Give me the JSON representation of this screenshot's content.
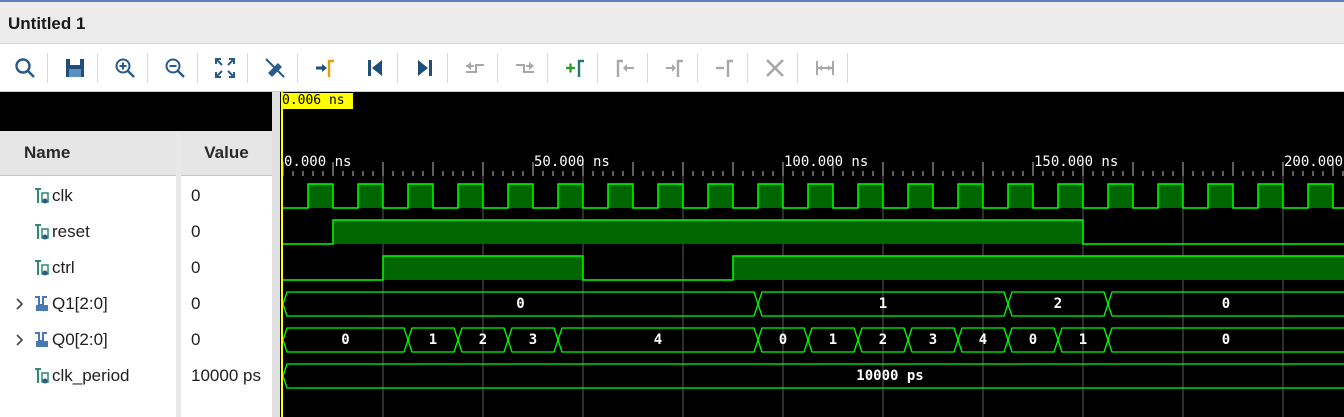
{
  "window": {
    "title": "Untitled 1"
  },
  "toolbar": {
    "buttons": [
      {
        "icon": "search-icon",
        "enabled": true
      },
      {
        "icon": "save-icon",
        "enabled": true
      },
      {
        "icon": "zoom-in-icon",
        "enabled": true
      },
      {
        "icon": "zoom-out-icon",
        "enabled": true
      },
      {
        "icon": "zoom-fit-icon",
        "enabled": true
      },
      {
        "icon": "snap-to-transition-icon",
        "enabled": true
      },
      {
        "icon": "go-to-cursor-icon",
        "enabled": true
      },
      {
        "icon": "go-to-time-zero-icon",
        "enabled": true
      },
      {
        "icon": "go-to-last-time-icon",
        "enabled": true
      },
      {
        "icon": "previous-transition-icon",
        "enabled": false
      },
      {
        "icon": "next-transition-icon",
        "enabled": false
      },
      {
        "icon": "add-marker-icon",
        "enabled": true
      },
      {
        "icon": "previous-marker-icon",
        "enabled": false
      },
      {
        "icon": "next-marker-icon",
        "enabled": false
      },
      {
        "icon": "swap-cursors-icon",
        "enabled": false
      },
      {
        "icon": "delete-marker-icon",
        "enabled": false
      },
      {
        "icon": "floating-ruler-icon",
        "enabled": false
      }
    ]
  },
  "columns": {
    "name": "Name",
    "value": "Value"
  },
  "signals": [
    {
      "name": "clk",
      "value": "0",
      "kind": "bit",
      "expandable": false
    },
    {
      "name": "reset",
      "value": "0",
      "kind": "bit",
      "expandable": false
    },
    {
      "name": "ctrl",
      "value": "0",
      "kind": "bit",
      "expandable": false
    },
    {
      "name": "Q1[2:0]",
      "value": "0",
      "kind": "bus",
      "expandable": true
    },
    {
      "name": "Q0[2:0]",
      "value": "0",
      "kind": "bus",
      "expandable": true
    },
    {
      "name": "clk_period",
      "value": "10000 ps",
      "kind": "bit",
      "expandable": false
    }
  ],
  "timeline": {
    "cursor_label": "0.006 ns",
    "tick_labels": [
      {
        "t": 0,
        "text": "0.000 ns"
      },
      {
        "t": 50,
        "text": "50.000 ns"
      },
      {
        "t": 100,
        "text": "100.000 ns"
      },
      {
        "t": 150,
        "text": "150.000 ns"
      },
      {
        "t": 200,
        "text": "200.000 ns"
      }
    ],
    "ns_per_view_start": 0,
    "clk_period_ns": 10,
    "reset_rise_ns": 10,
    "reset_fall_ns": 160,
    "ctrl_segments": [
      [
        20,
        60
      ],
      [
        90,
        215
      ]
    ],
    "q1_segments": [
      {
        "start": 0,
        "end": 95,
        "label": "0"
      },
      {
        "start": 95,
        "end": 145,
        "label": "1"
      },
      {
        "start": 145,
        "end": 165,
        "label": "2"
      },
      {
        "start": 165,
        "end": 215,
        "label": "0"
      }
    ],
    "q0_segments": [
      {
        "start": 0,
        "end": 25,
        "label": "0"
      },
      {
        "start": 25,
        "end": 35,
        "label": "1"
      },
      {
        "start": 35,
        "end": 45,
        "label": "2"
      },
      {
        "start": 45,
        "end": 55,
        "label": "3"
      },
      {
        "start": 55,
        "end": 95,
        "label": "4"
      },
      {
        "start": 95,
        "end": 105,
        "label": "0"
      },
      {
        "start": 105,
        "end": 115,
        "label": "1"
      },
      {
        "start": 115,
        "end": 125,
        "label": "2"
      },
      {
        "start": 125,
        "end": 135,
        "label": "3"
      },
      {
        "start": 135,
        "end": 145,
        "label": "4"
      },
      {
        "start": 145,
        "end": 155,
        "label": "0"
      },
      {
        "start": 155,
        "end": 165,
        "label": "1"
      },
      {
        "start": 165,
        "end": 215,
        "label": "0"
      }
    ],
    "clk_period_segment": {
      "start": 0,
      "end": 215,
      "label": "10000 ps"
    }
  },
  "colors": {
    "wave_green": "#00ff00",
    "wave_fill": "#006600",
    "background": "#000000",
    "cursor": "#ffff00"
  }
}
